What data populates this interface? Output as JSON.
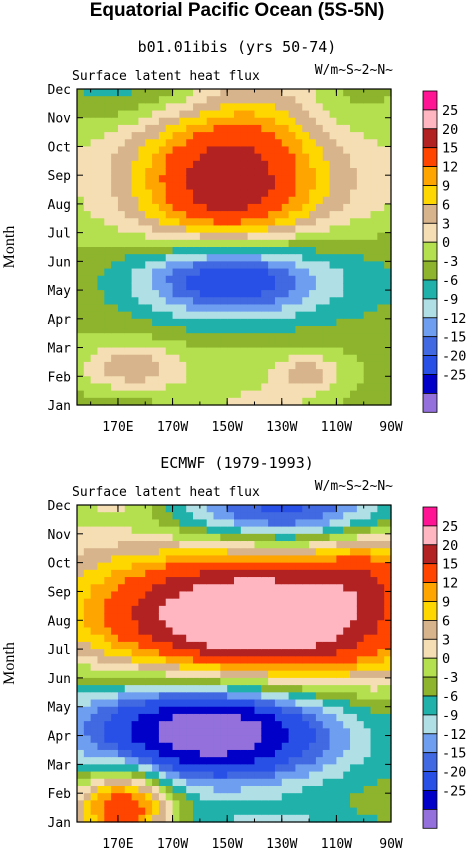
{
  "figure_title": "Equatorial Pacific Ocean (5S-5N)",
  "chart_data": [
    {
      "type": "heatmap",
      "title": "b01.01ibis (yrs 50-74)",
      "left_label": "Surface latent heat flux",
      "right_label": "W/m~S~2~N~",
      "ylabel": "Month",
      "x_ticks": [
        "170E",
        "170W",
        "150W",
        "130W",
        "110W",
        "90W"
      ],
      "y_ticks": [
        "Jan",
        "Feb",
        "Mar",
        "Apr",
        "May",
        "Jun",
        "Jul",
        "Aug",
        "Sep",
        "Oct",
        "Nov",
        "Dec"
      ],
      "levels": [
        "25",
        "20",
        "15",
        "12",
        "9",
        "6",
        "3",
        "0",
        "-3",
        "-6",
        "-9",
        "-12",
        "-15",
        "-20",
        "-25"
      ],
      "features": [
        {
          "month": 7.3,
          "lon": 210,
          "value": 18,
          "spread_lon": 22,
          "spread_month": 2.2
        },
        {
          "month": 8.3,
          "lon": 220,
          "value": 8,
          "spread_lon": 45,
          "spread_month": 3.0
        },
        {
          "month": 4.5,
          "lon": 210,
          "value": -22,
          "spread_lon": 22,
          "spread_month": 1.0
        },
        {
          "month": 4.6,
          "lon": 225,
          "value": -8,
          "spread_lon": 45,
          "spread_month": 1.5
        },
        {
          "month": 1.3,
          "lon": 175,
          "value": 8,
          "spread_lon": 12,
          "spread_month": 0.6
        },
        {
          "month": 1.1,
          "lon": 240,
          "value": 7,
          "spread_lon": 8,
          "spread_month": 0.5
        },
        {
          "month": 11.0,
          "lon": 180,
          "value": -8,
          "spread_lon": 25,
          "spread_month": 1.0
        },
        {
          "month": 10.8,
          "lon": 255,
          "value": -5,
          "spread_lon": 15,
          "spread_month": 1.5
        }
      ]
    },
    {
      "type": "heatmap",
      "title": "ECMWF (1979-1993)",
      "left_label": "Surface latent heat flux",
      "right_label": "W/m~S~2~N~",
      "ylabel": "Month",
      "x_ticks": [
        "170E",
        "170W",
        "150W",
        "130W",
        "110W",
        "90W"
      ],
      "y_ticks": [
        "Jan",
        "Feb",
        "Mar",
        "Apr",
        "May",
        "Jun",
        "Jul",
        "Aug",
        "Sep",
        "Oct",
        "Nov",
        "Dec"
      ],
      "levels": [
        "25",
        "20",
        "15",
        "12",
        "9",
        "6",
        "3",
        "0",
        "-3",
        "-6",
        "-9",
        "-12",
        "-15",
        "-20",
        "-25"
      ],
      "features": [
        {
          "month": 6.8,
          "lon": 220,
          "value": 28,
          "spread_lon": 40,
          "spread_month": 1.6
        },
        {
          "month": 7.6,
          "lon": 215,
          "value": 10,
          "spread_lon": 55,
          "spread_month": 2.2
        },
        {
          "month": 3.2,
          "lon": 205,
          "value": -24,
          "spread_lon": 30,
          "spread_month": 1.2
        },
        {
          "month": 3.8,
          "lon": 200,
          "value": -10,
          "spread_lon": 50,
          "spread_month": 2.0
        },
        {
          "month": 0.6,
          "lon": 172,
          "value": 22,
          "spread_lon": 12,
          "spread_month": 0.9
        },
        {
          "month": 10.7,
          "lon": 230,
          "value": -20,
          "spread_lon": 30,
          "spread_month": 0.9
        },
        {
          "month": 9.0,
          "lon": 260,
          "value": 7,
          "spread_lon": 12,
          "spread_month": 1.0
        }
      ]
    }
  ],
  "colors": {
    "levels": [
      "#9370db",
      "#0000c8",
      "#2850e6",
      "#4169e1",
      "#6e9ef0",
      "#b0e0e6",
      "#20b2aa",
      "#8db42c",
      "#b4e050",
      "#f5deb3",
      "#d8b48c",
      "#ffd700",
      "#ffa500",
      "#ff4500",
      "#b22222",
      "#ffb6c1",
      "#ff1493"
    ]
  }
}
